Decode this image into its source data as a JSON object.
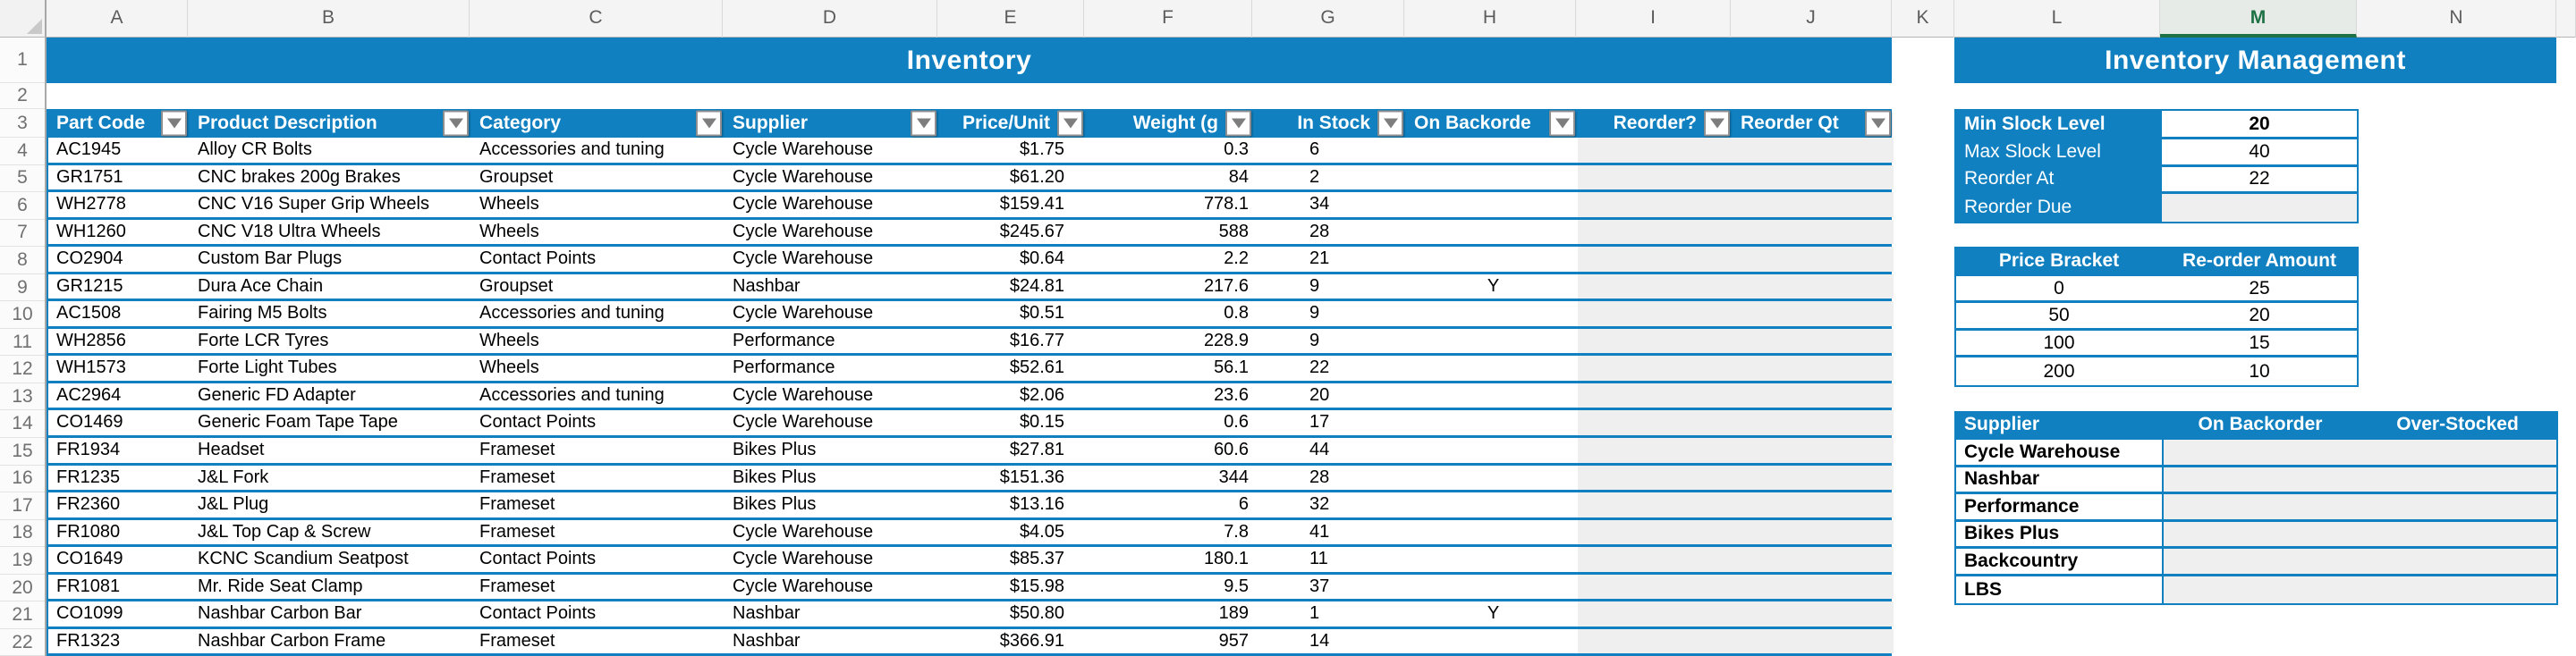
{
  "titles": {
    "inventory": "Inventory",
    "management": "Inventory Management"
  },
  "spreadsheet": {
    "column_letters": [
      "A",
      "B",
      "C",
      "D",
      "E",
      "F",
      "G",
      "H",
      "I",
      "J",
      "K",
      "L",
      "M",
      "N"
    ],
    "selected_column_letter": "M",
    "row_numbers": [
      "1",
      "2",
      "3",
      "4",
      "5",
      "6",
      "7",
      "8",
      "9",
      "10",
      "11",
      "12",
      "13",
      "14",
      "15",
      "16",
      "17",
      "18",
      "19",
      "20",
      "21",
      "22"
    ]
  },
  "inventory_table": {
    "headers": [
      "Part Code",
      "Product Description",
      "Category",
      "Supplier",
      "Price/Unit",
      "Weight (g",
      "In Stock",
      "On Backorde",
      "Reorder?",
      "Reorder Qt"
    ],
    "rows": [
      [
        "AC1945",
        "Alloy CR Bolts",
        "Accessories and tuning",
        "Cycle Warehouse",
        "$1.75",
        "0.3",
        "6",
        "",
        "",
        ""
      ],
      [
        "GR1751",
        "CNC brakes 200g Brakes",
        "Groupset",
        "Cycle Warehouse",
        "$61.20",
        "84",
        "2",
        "",
        "",
        ""
      ],
      [
        "WH2778",
        "CNC V16 Super Grip Wheels",
        "Wheels",
        "Cycle Warehouse",
        "$159.41",
        "778.1",
        "34",
        "",
        "",
        ""
      ],
      [
        "WH1260",
        "CNC V18 Ultra Wheels",
        "Wheels",
        "Cycle Warehouse",
        "$245.67",
        "588",
        "28",
        "",
        "",
        ""
      ],
      [
        "CO2904",
        "Custom Bar Plugs",
        "Contact Points",
        "Cycle Warehouse",
        "$0.64",
        "2.2",
        "21",
        "",
        "",
        ""
      ],
      [
        "GR1215",
        "Dura Ace Chain",
        "Groupset",
        "Nashbar",
        "$24.81",
        "217.6",
        "9",
        "Y",
        "",
        ""
      ],
      [
        "AC1508",
        "Fairing M5 Bolts",
        "Accessories and tuning",
        "Cycle Warehouse",
        "$0.51",
        "0.8",
        "9",
        "",
        "",
        ""
      ],
      [
        "WH2856",
        "Forte LCR Tyres",
        "Wheels",
        "Performance",
        "$16.77",
        "228.9",
        "9",
        "",
        "",
        ""
      ],
      [
        "WH1573",
        "Forte Light Tubes",
        "Wheels",
        "Performance",
        "$52.61",
        "56.1",
        "22",
        "",
        "",
        ""
      ],
      [
        "AC2964",
        "Generic FD Adapter",
        "Accessories and tuning",
        "Cycle Warehouse",
        "$2.06",
        "23.6",
        "20",
        "",
        "",
        ""
      ],
      [
        "CO1469",
        "Generic Foam Tape Tape",
        "Contact Points",
        "Cycle Warehouse",
        "$0.15",
        "0.6",
        "17",
        "",
        "",
        ""
      ],
      [
        "FR1934",
        "Headset",
        "Frameset",
        "Bikes Plus",
        "$27.81",
        "60.6",
        "44",
        "",
        "",
        ""
      ],
      [
        "FR1235",
        "J&L Fork",
        "Frameset",
        "Bikes Plus",
        "$151.36",
        "344",
        "28",
        "",
        "",
        ""
      ],
      [
        "FR2360",
        "J&L Plug",
        "Frameset",
        "Bikes Plus",
        "$13.16",
        "6",
        "32",
        "",
        "",
        ""
      ],
      [
        "FR1080",
        "J&L Top Cap & Screw",
        "Frameset",
        "Cycle Warehouse",
        "$4.05",
        "7.8",
        "41",
        "",
        "",
        ""
      ],
      [
        "CO1649",
        "KCNC Scandium Seatpost",
        "Contact Points",
        "Cycle Warehouse",
        "$85.37",
        "180.1",
        "11",
        "",
        "",
        ""
      ],
      [
        "FR1081",
        "Mr. Ride Seat Clamp",
        "Frameset",
        "Cycle Warehouse",
        "$15.98",
        "9.5",
        "37",
        "",
        "",
        ""
      ],
      [
        "CO1099",
        "Nashbar Carbon Bar",
        "Contact Points",
        "Nashbar",
        "$50.80",
        "189",
        "1",
        "Y",
        "",
        ""
      ],
      [
        "FR1323",
        "Nashbar Carbon Frame",
        "Frameset",
        "Nashbar",
        "$366.91",
        "957",
        "14",
        "",
        "",
        ""
      ]
    ]
  },
  "management": {
    "stock_settings": [
      {
        "label": "Min Slock Level",
        "value": "20"
      },
      {
        "label": "Max Slock Level",
        "value": "40"
      },
      {
        "label": "Reorder At",
        "value": "22"
      },
      {
        "label": "Reorder Due",
        "value": ""
      }
    ],
    "price_brackets": {
      "headers": [
        "Price Bracket",
        "Re-order Amount"
      ],
      "rows": [
        [
          "0",
          "25"
        ],
        [
          "50",
          "20"
        ],
        [
          "100",
          "15"
        ],
        [
          "200",
          "10"
        ]
      ]
    },
    "suppliers": {
      "headers": [
        "Supplier",
        "On Backorder",
        "Over-Stocked"
      ],
      "rows": [
        "Cycle Warehouse",
        "Nashbar",
        "Performance",
        "Bikes Plus",
        "Backcountry",
        "LBS"
      ]
    }
  },
  "colors": {
    "accent_blue": "#1080c1",
    "cell_gray": "#efefef",
    "selected_green": "#1e7145"
  }
}
